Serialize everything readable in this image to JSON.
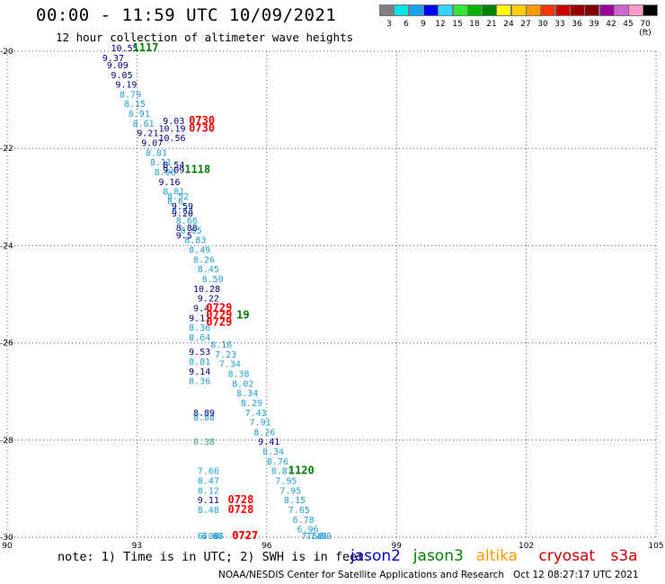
{
  "title": "00:00 - 11:59 UTC 10/09/2021",
  "subtitle": "12 hour collection of altimeter wave heights",
  "colorbar": {
    "colors": [
      "#7f7f7f",
      "#00e6e6",
      "#1aa3f0",
      "#0000ff",
      "#33d6ff",
      "#33e633",
      "#00b300",
      "#008000",
      "#ffff00",
      "#ffcc00",
      "#ff9900",
      "#ff3300",
      "#cc0000",
      "#990000",
      "#800000",
      "#990099",
      "#cc66cc",
      "#ff99cc",
      "#000000"
    ],
    "labels": [
      "3",
      "6",
      "9",
      "12",
      "15",
      "18",
      "21",
      "24",
      "27",
      "30",
      "33",
      "36",
      "39",
      "42",
      "45",
      "70 (ft)"
    ]
  },
  "footnote": "note: 1) Time is in UTC; 2) SWH is in feet",
  "credits": "NOAA/NESDIS Center for Satellite Applications and Research   Oct 12 08:27:17 UTC 2021",
  "legend": [
    {
      "name": "jason2",
      "color": "#0000cc"
    },
    {
      "name": "jason3",
      "color": "#008000"
    },
    {
      "name": "altika",
      "color": "#ff9900"
    },
    {
      "name": "cryosat",
      "color": "#cc0000"
    },
    {
      "name": "s3a",
      "color": "#cc0000"
    }
  ],
  "chart_data": {
    "type": "scatter",
    "title": "00:00 - 11:59 UTC 10/09/2021",
    "subtitle": "12 hour collection of altimeter wave heights",
    "xlim": [
      90,
      105
    ],
    "ylim": [
      -30,
      -20
    ],
    "x_ticks": [
      "90",
      "93",
      "96",
      "99",
      "102",
      "105"
    ],
    "y_ticks": [
      "-20",
      "-22",
      "-24",
      "-26",
      "-28",
      "-30"
    ],
    "grid": true,
    "annotations": [
      {
        "x": 92.4,
        "y": -20.0,
        "text": "10.55",
        "color": "#00008b"
      },
      {
        "x": 92.9,
        "y": -20.0,
        "text": "1117",
        "color": "#008000"
      },
      {
        "x": 92.2,
        "y": -20.2,
        "text": "9.37",
        "color": "#00008b"
      },
      {
        "x": 92.3,
        "y": -20.35,
        "text": "9.09",
        "color": "#00008b"
      },
      {
        "x": 92.4,
        "y": -20.55,
        "text": "9.05",
        "color": "#00008b"
      },
      {
        "x": 92.5,
        "y": -20.75,
        "text": "9.19",
        "color": "#00008b"
      },
      {
        "x": 92.6,
        "y": -20.95,
        "text": "8.79",
        "color": "#1fa0d8"
      },
      {
        "x": 92.7,
        "y": -21.15,
        "text": "8.15",
        "color": "#1fa0d8"
      },
      {
        "x": 92.8,
        "y": -21.35,
        "text": "8.91",
        "color": "#1fa0d8"
      },
      {
        "x": 92.9,
        "y": -21.55,
        "text": "8.61",
        "color": "#1fa0d8"
      },
      {
        "x": 93.0,
        "y": -21.75,
        "text": "9.21",
        "color": "#00008b"
      },
      {
        "x": 93.1,
        "y": -21.95,
        "text": "9.07",
        "color": "#00008b"
      },
      {
        "x": 93.2,
        "y": -22.15,
        "text": "8.81",
        "color": "#1fa0d8"
      },
      {
        "x": 93.3,
        "y": -22.35,
        "text": "8.11",
        "color": "#1fa0d8"
      },
      {
        "x": 93.4,
        "y": -22.55,
        "text": "8.96",
        "color": "#1fa0d8"
      },
      {
        "x": 93.5,
        "y": -22.75,
        "text": "9.16",
        "color": "#00008b"
      },
      {
        "x": 93.6,
        "y": -22.95,
        "text": "8.81",
        "color": "#1fa0d8"
      },
      {
        "x": 93.7,
        "y": -23.15,
        "text": "8.6",
        "color": "#1fa0d8"
      },
      {
        "x": 93.8,
        "y": -23.35,
        "text": "8.83",
        "color": "#1fa0d8"
      },
      {
        "x": 93.9,
        "y": -23.55,
        "text": "8.66",
        "color": "#1fa0d8"
      },
      {
        "x": 94.0,
        "y": -23.75,
        "text": "8.65",
        "color": "#1fa0d8"
      },
      {
        "x": 94.1,
        "y": -23.95,
        "text": "8.83",
        "color": "#1fa0d8"
      },
      {
        "x": 94.2,
        "y": -24.15,
        "text": "8.49",
        "color": "#1fa0d8"
      },
      {
        "x": 94.3,
        "y": -24.35,
        "text": "8.26",
        "color": "#1fa0d8"
      },
      {
        "x": 94.4,
        "y": -24.55,
        "text": "8.45",
        "color": "#1fa0d8"
      },
      {
        "x": 94.5,
        "y": -24.75,
        "text": "8.50",
        "color": "#1fa0d8"
      },
      {
        "x": 94.3,
        "y": -24.95,
        "text": "10.28",
        "color": "#00008b"
      },
      {
        "x": 94.4,
        "y": -25.15,
        "text": "9.22",
        "color": "#00008b"
      },
      {
        "x": 94.3,
        "y": -25.35,
        "text": "9.4",
        "color": "#00008b"
      },
      {
        "x": 94.2,
        "y": -25.55,
        "text": "9.11",
        "color": "#00008b"
      },
      {
        "x": 94.2,
        "y": -25.75,
        "text": "8.36",
        "color": "#1fa0d8"
      },
      {
        "x": 94.2,
        "y": -25.95,
        "text": "8.64",
        "color": "#1fa0d8"
      },
      {
        "x": 94.7,
        "y": -26.1,
        "text": "8.16",
        "color": "#1fa0d8"
      },
      {
        "x": 94.8,
        "y": -26.3,
        "text": "7.23",
        "color": "#1fa0d8"
      },
      {
        "x": 94.2,
        "y": -26.25,
        "text": "9.53",
        "color": "#00008b"
      },
      {
        "x": 94.2,
        "y": -26.45,
        "text": "8.81",
        "color": "#1fa0d8"
      },
      {
        "x": 94.2,
        "y": -26.65,
        "text": "9.14",
        "color": "#00008b"
      },
      {
        "x": 94.2,
        "y": -26.85,
        "text": "8.36",
        "color": "#1fa0d8"
      },
      {
        "x": 94.9,
        "y": -26.5,
        "text": "7.34",
        "color": "#1fa0d8"
      },
      {
        "x": 95.1,
        "y": -26.7,
        "text": "8.38",
        "color": "#1fa0d8"
      },
      {
        "x": 95.2,
        "y": -26.9,
        "text": "8.02",
        "color": "#1fa0d8"
      },
      {
        "x": 95.3,
        "y": -27.1,
        "text": "8.34",
        "color": "#1fa0d8"
      },
      {
        "x": 95.4,
        "y": -27.3,
        "text": "8.29",
        "color": "#1fa0d8"
      },
      {
        "x": 95.5,
        "y": -27.5,
        "text": "7.43",
        "color": "#1fa0d8"
      },
      {
        "x": 95.6,
        "y": -27.7,
        "text": "7.91",
        "color": "#1fa0d8"
      },
      {
        "x": 94.3,
        "y": -27.5,
        "text": "8.89",
        "color": "#00008b"
      },
      {
        "x": 94.3,
        "y": -27.6,
        "text": "8.88",
        "color": "#1fa0d8"
      },
      {
        "x": 95.7,
        "y": -27.9,
        "text": "8.26",
        "color": "#1fa0d8"
      },
      {
        "x": 95.8,
        "y": -28.1,
        "text": "9.41",
        "color": "#00008b"
      },
      {
        "x": 95.9,
        "y": -28.3,
        "text": "8.34",
        "color": "#1fa0d8"
      },
      {
        "x": 94.3,
        "y": -28.1,
        "text": "8.38",
        "color": "#3cb371"
      },
      {
        "x": 96.0,
        "y": -28.5,
        "text": "8.76",
        "color": "#1fa0d8"
      },
      {
        "x": 96.1,
        "y": -28.7,
        "text": "8.87",
        "color": "#1fa0d8"
      },
      {
        "x": 96.5,
        "y": -28.7,
        "text": "1120",
        "color": "#008000"
      },
      {
        "x": 94.4,
        "y": -28.7,
        "text": "7.66",
        "color": "#1fa0d8"
      },
      {
        "x": 94.4,
        "y": -28.9,
        "text": "8.47",
        "color": "#1fa0d8"
      },
      {
        "x": 94.4,
        "y": -29.1,
        "text": "8.12",
        "color": "#1fa0d8"
      },
      {
        "x": 94.4,
        "y": -29.3,
        "text": "9.11",
        "color": "#00008b"
      },
      {
        "x": 94.4,
        "y": -29.5,
        "text": "8.48",
        "color": "#1fa0d8"
      },
      {
        "x": 95.1,
        "y": -29.3,
        "text": "0728",
        "color": "#ff0000"
      },
      {
        "x": 95.1,
        "y": -29.5,
        "text": "0728",
        "color": "#ff0000"
      },
      {
        "x": 96.2,
        "y": -28.9,
        "text": "7.95",
        "color": "#1fa0d8"
      },
      {
        "x": 96.3,
        "y": -29.1,
        "text": "7.95",
        "color": "#1fa0d8"
      },
      {
        "x": 96.4,
        "y": -29.3,
        "text": "8.15",
        "color": "#1fa0d8"
      },
      {
        "x": 96.5,
        "y": -29.5,
        "text": "7.65",
        "color": "#1fa0d8"
      },
      {
        "x": 96.6,
        "y": -29.7,
        "text": "6.78",
        "color": "#1fa0d8"
      },
      {
        "x": 96.7,
        "y": -29.9,
        "text": "6.96",
        "color": "#1fa0d8"
      },
      {
        "x": 96.8,
        "y": -30.1,
        "text": "7.58",
        "color": "#1fa0d8"
      },
      {
        "x": 96.9,
        "y": -30.3,
        "text": "7.44",
        "color": "#1fa0d8"
      },
      {
        "x": 97.0,
        "y": -30.5,
        "text": "7.59",
        "color": "#1fa0d8"
      },
      {
        "x": 94.4,
        "y": -30.2,
        "text": "6.98",
        "color": "#1fa0d8"
      },
      {
        "x": 94.5,
        "y": -30.5,
        "text": "7.37",
        "color": "#1fa0d8"
      },
      {
        "x": 94.5,
        "y": -30.55,
        "text": "6.66",
        "color": "#1fa0d8"
      },
      {
        "x": 95.2,
        "y": -30.5,
        "text": "0727",
        "color": "#ff0000"
      },
      {
        "x": 95.2,
        "y": -30.55,
        "text": "0727",
        "color": "#ff0000"
      },
      {
        "x": 93.6,
        "y": -21.5,
        "text": "9.03",
        "color": "#00008b"
      },
      {
        "x": 93.5,
        "y": -21.65,
        "text": "10.19",
        "color": "#00008b"
      },
      {
        "x": 93.5,
        "y": -21.85,
        "text": "10.56",
        "color": "#00008b"
      },
      {
        "x": 94.2,
        "y": -21.5,
        "text": "0730",
        "color": "#ff0000"
      },
      {
        "x": 94.2,
        "y": -21.65,
        "text": "0730",
        "color": "#ff0000"
      },
      {
        "x": 93.6,
        "y": -22.4,
        "text": "8.54",
        "color": "#00008b"
      },
      {
        "x": 93.6,
        "y": -22.5,
        "text": "9.09",
        "color": "#00008b"
      },
      {
        "x": 94.1,
        "y": -22.5,
        "text": "1118",
        "color": "#008000"
      },
      {
        "x": 93.7,
        "y": -23.05,
        "text": "8.52",
        "color": "#1fa0d8"
      },
      {
        "x": 93.8,
        "y": -23.25,
        "text": "9.59",
        "color": "#00008b"
      },
      {
        "x": 93.8,
        "y": -23.4,
        "text": "9.20",
        "color": "#00008b"
      },
      {
        "x": 93.9,
        "y": -23.7,
        "text": "8.88",
        "color": "#00008b"
      },
      {
        "x": 93.9,
        "y": -23.85,
        "text": "9.5",
        "color": "#00008b"
      },
      {
        "x": 94.6,
        "y": -25.35,
        "text": "0729",
        "color": "#ff0000"
      },
      {
        "x": 94.6,
        "y": -25.5,
        "text": "0729",
        "color": "#ff0000"
      },
      {
        "x": 94.6,
        "y": -25.65,
        "text": "0729",
        "color": "#ff0000"
      },
      {
        "x": 95.3,
        "y": -25.5,
        "text": "19",
        "color": "#008000"
      }
    ]
  }
}
